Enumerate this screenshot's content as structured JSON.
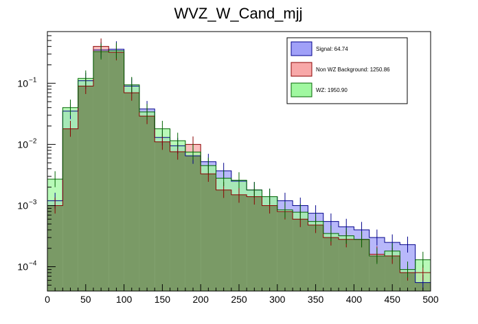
{
  "chart_data": {
    "type": "bar",
    "title": "WVZ_W_Cand_mjj",
    "xlabel": "",
    "ylabel": "",
    "xlim": [
      0,
      500
    ],
    "ylim": [
      4e-05,
      0.7
    ],
    "yscale": "log",
    "bin_width": 20,
    "x_ticks": [
      "0",
      "50",
      "100",
      "150",
      "200",
      "250",
      "300",
      "350",
      "400",
      "450",
      "500"
    ],
    "x_tick_values": [
      0,
      50,
      100,
      150,
      200,
      250,
      300,
      350,
      400,
      450,
      500
    ],
    "y_ticks": [
      {
        "value": 0.1,
        "base": "10",
        "exp": "−1"
      },
      {
        "value": 0.01,
        "base": "10",
        "exp": "−2"
      },
      {
        "value": 0.001,
        "base": "10",
        "exp": "−3"
      },
      {
        "value": 0.0001,
        "base": "10",
        "exp": "−4"
      }
    ],
    "legend_position": "top-right",
    "series": [
      {
        "name": "Signal: 64.74",
        "fill": "#a0a0f8",
        "line": "#00008b",
        "values": [
          0.0012,
          0.035,
          0.11,
          0.35,
          0.36,
          0.09,
          0.038,
          0.013,
          0.0095,
          0.0065,
          0.0052,
          0.0037,
          0.0025,
          0.0018,
          0.0014,
          0.0012,
          0.001,
          0.00075,
          0.00055,
          0.00045,
          0.0004,
          0.0003,
          0.00025,
          0.00023,
          5.5e-05
        ]
      },
      {
        "name": "Non WZ Background: 1250.86",
        "fill": "#f8a8a8",
        "line": "#8b0000",
        "values": [
          0.001,
          0.018,
          0.09,
          0.4,
          0.32,
          0.07,
          0.029,
          0.011,
          0.0076,
          0.01,
          0.0033,
          0.0018,
          0.0015,
          0.0014,
          0.001,
          0.0008,
          0.0006,
          0.00048,
          0.0003,
          0.00028,
          0.00028,
          0.00016,
          0.00015,
          8e-05,
          8e-05
        ]
      },
      {
        "name": "WZ: 1950.90",
        "fill": "#a0f8a0",
        "line": "#006400",
        "values": [
          0.0027,
          0.04,
          0.12,
          0.33,
          0.34,
          0.094,
          0.034,
          0.018,
          0.0115,
          0.0075,
          0.0045,
          0.0028,
          0.0026,
          0.0018,
          0.0014,
          0.00085,
          0.00078,
          0.00055,
          0.00035,
          0.00032,
          0.00028,
          0.00015,
          0.00018,
          9e-05,
          0.00013
        ]
      }
    ]
  }
}
